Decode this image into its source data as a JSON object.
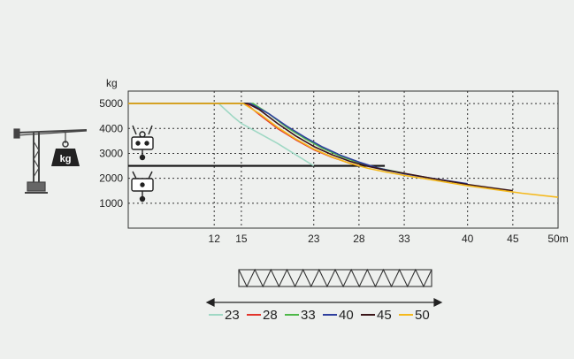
{
  "chart_data": {
    "type": "line",
    "ylabel": "kg",
    "x_unit": "m",
    "x_ticks": [
      12,
      15,
      23,
      28,
      33,
      40,
      45,
      50
    ],
    "x_tick_labels": [
      "12",
      "15",
      "23",
      "28",
      "33",
      "40",
      "45",
      "50m"
    ],
    "y_ticks": [
      1000,
      2000,
      3000,
      4000,
      5000
    ],
    "y_tick_labels": [
      "1000",
      "2000",
      "3000",
      "4000",
      "5000"
    ],
    "xlim": [
      2.5,
      50
    ],
    "ylim": [
      0,
      5500
    ],
    "grid": true,
    "grid_style": "dotted",
    "two_fall_limit": 2500,
    "legend_position": "bottom",
    "series": [
      {
        "name": "23",
        "color": "#9fd8c4",
        "points": [
          [
            2.5,
            5000
          ],
          [
            12.5,
            5000
          ],
          [
            14,
            4500
          ],
          [
            15,
            4200
          ],
          [
            17,
            3800
          ],
          [
            19,
            3400
          ],
          [
            21,
            2950
          ],
          [
            23,
            2500
          ]
        ]
      },
      {
        "name": "28",
        "color": "#e2342b",
        "points": [
          [
            2.5,
            5000
          ],
          [
            15.5,
            5000
          ],
          [
            17,
            4550
          ],
          [
            19,
            4000
          ],
          [
            21,
            3550
          ],
          [
            23,
            3150
          ],
          [
            25,
            2850
          ],
          [
            27,
            2600
          ],
          [
            28,
            2500
          ]
        ]
      },
      {
        "name": "33",
        "color": "#4db848",
        "points": [
          [
            2.5,
            5000
          ],
          [
            16.3,
            5000
          ],
          [
            18,
            4600
          ],
          [
            20,
            4050
          ],
          [
            22,
            3600
          ],
          [
            24,
            3200
          ],
          [
            26,
            2880
          ],
          [
            28,
            2620
          ],
          [
            30,
            2420
          ],
          [
            33,
            2200
          ]
        ]
      },
      {
        "name": "40",
        "color": "#2e3f9e",
        "points": [
          [
            2.5,
            5000
          ],
          [
            16,
            5000
          ],
          [
            18,
            4600
          ],
          [
            20,
            4100
          ],
          [
            22,
            3650
          ],
          [
            24,
            3250
          ],
          [
            26,
            2920
          ],
          [
            28,
            2650
          ],
          [
            30,
            2420
          ],
          [
            33,
            2180
          ],
          [
            36,
            2000
          ],
          [
            40,
            1780
          ]
        ]
      },
      {
        "name": "45",
        "color": "#3a1518",
        "points": [
          [
            2.5,
            5000
          ],
          [
            15.7,
            5000
          ],
          [
            17,
            4750
          ],
          [
            19,
            4200
          ],
          [
            21,
            3700
          ],
          [
            23,
            3280
          ],
          [
            25,
            2950
          ],
          [
            27,
            2680
          ],
          [
            29,
            2480
          ],
          [
            31,
            2320
          ],
          [
            33,
            2200
          ],
          [
            36,
            2000
          ],
          [
            40,
            1750
          ],
          [
            43,
            1600
          ],
          [
            45,
            1500
          ]
        ]
      },
      {
        "name": "50",
        "color": "#f5b91c",
        "points": [
          [
            2.5,
            5000
          ],
          [
            15.2,
            5000
          ],
          [
            17,
            4600
          ],
          [
            19,
            4050
          ],
          [
            21,
            3580
          ],
          [
            23,
            3180
          ],
          [
            25,
            2860
          ],
          [
            27,
            2600
          ],
          [
            29,
            2400
          ],
          [
            31,
            2250
          ],
          [
            33,
            2120
          ],
          [
            36,
            1940
          ],
          [
            40,
            1700
          ],
          [
            43,
            1550
          ],
          [
            46,
            1400
          ],
          [
            50,
            1240
          ]
        ]
      }
    ]
  },
  "icons": {
    "crane": "tower-crane-icon",
    "weight": "weight-icon",
    "weight_label": "kg",
    "hook_four_fall": "hook-four-fall-icon",
    "hook_two_fall": "hook-two-fall-icon",
    "jib": "jib-truss-icon",
    "arrow": "double-arrow-icon"
  }
}
